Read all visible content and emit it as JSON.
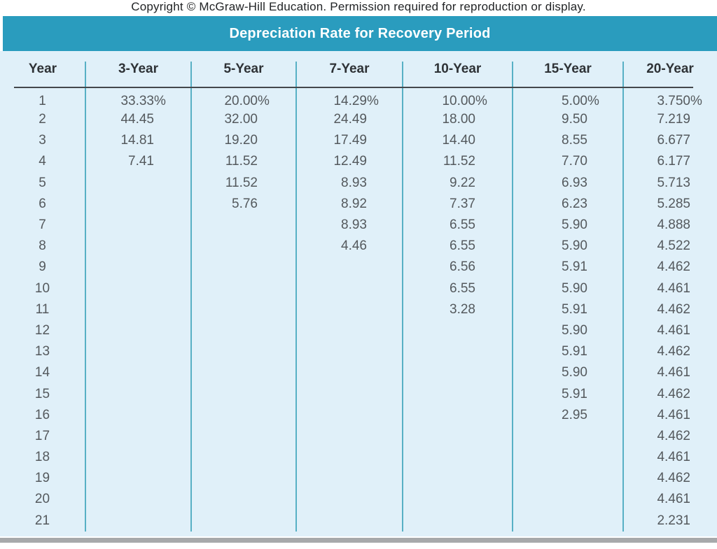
{
  "page": {
    "copyright": "Copyright © McGraw-Hill Education. Permission required for reproduction or display."
  },
  "table": {
    "title": "Depreciation Rate for Recovery Period",
    "columns": [
      "Year",
      "3-Year",
      "5-Year",
      "7-Year",
      "10-Year",
      "15-Year",
      "20-Year"
    ],
    "rows": [
      {
        "year": "1",
        "values": [
          "33.33%",
          "20.00%",
          "14.29%",
          "10.00%",
          "5.00%",
          "3.750%"
        ]
      },
      {
        "year": "2",
        "values": [
          "44.45",
          "32.00",
          "24.49",
          "18.00",
          "9.50",
          "7.219"
        ]
      },
      {
        "year": "3",
        "values": [
          "14.81",
          "19.20",
          "17.49",
          "14.40",
          "8.55",
          "6.677"
        ]
      },
      {
        "year": "4",
        "values": [
          "7.41",
          "11.52",
          "12.49",
          "11.52",
          "7.70",
          "6.177"
        ]
      },
      {
        "year": "5",
        "values": [
          "",
          "11.52",
          "8.93",
          "9.22",
          "6.93",
          "5.713"
        ]
      },
      {
        "year": "6",
        "values": [
          "",
          "5.76",
          "8.92",
          "7.37",
          "6.23",
          "5.285"
        ]
      },
      {
        "year": "7",
        "values": [
          "",
          "",
          "8.93",
          "6.55",
          "5.90",
          "4.888"
        ]
      },
      {
        "year": "8",
        "values": [
          "",
          "",
          "4.46",
          "6.55",
          "5.90",
          "4.522"
        ]
      },
      {
        "year": "9",
        "values": [
          "",
          "",
          "",
          "6.56",
          "5.91",
          "4.462"
        ]
      },
      {
        "year": "10",
        "values": [
          "",
          "",
          "",
          "6.55",
          "5.90",
          "4.461"
        ]
      },
      {
        "year": "11",
        "values": [
          "",
          "",
          "",
          "3.28",
          "5.91",
          "4.462"
        ]
      },
      {
        "year": "12",
        "values": [
          "",
          "",
          "",
          "",
          "5.90",
          "4.461"
        ]
      },
      {
        "year": "13",
        "values": [
          "",
          "",
          "",
          "",
          "5.91",
          "4.462"
        ]
      },
      {
        "year": "14",
        "values": [
          "",
          "",
          "",
          "",
          "5.90",
          "4.461"
        ]
      },
      {
        "year": "15",
        "values": [
          "",
          "",
          "",
          "",
          "5.91",
          "4.462"
        ]
      },
      {
        "year": "16",
        "values": [
          "",
          "",
          "",
          "",
          "2.95",
          "4.461"
        ]
      },
      {
        "year": "17",
        "values": [
          "",
          "",
          "",
          "",
          "",
          "4.462"
        ]
      },
      {
        "year": "18",
        "values": [
          "",
          "",
          "",
          "",
          "",
          "4.461"
        ]
      },
      {
        "year": "19",
        "values": [
          "",
          "",
          "",
          "",
          "",
          "4.462"
        ]
      },
      {
        "year": "20",
        "values": [
          "",
          "",
          "",
          "",
          "",
          "4.461"
        ]
      },
      {
        "year": "21",
        "values": [
          "",
          "",
          "",
          "",
          "",
          "2.231"
        ]
      }
    ]
  },
  "colors": {
    "title_bar": "#2a9cbe",
    "title_text": "#ffffff",
    "table_background": "#e0f0f9",
    "column_separator": "#58b0c5",
    "header_underline": "#44484c",
    "header_text": "#2e3236",
    "number_text": "#54595d",
    "copyright_text": "#222426",
    "bottom_bar": "#a7a9ab"
  }
}
